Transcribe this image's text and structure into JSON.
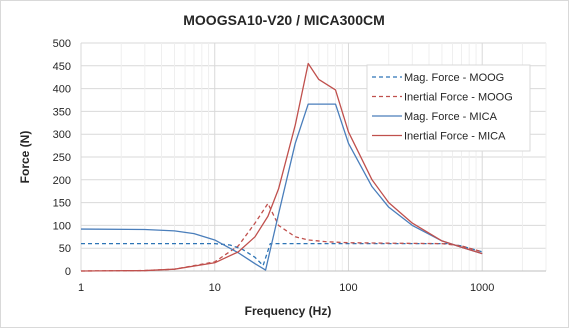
{
  "chart_data": {
    "type": "line",
    "title": "MOOGSA10-V20 / MICA300CM",
    "xlabel": "Frequency (Hz)",
    "ylabel": "Force (N)",
    "xscale": "log",
    "xlim": [
      1,
      3000
    ],
    "ylim": [
      0,
      500
    ],
    "xticks": [
      "1",
      "10",
      "100",
      "1000"
    ],
    "yticks": [
      "0",
      "50",
      "100",
      "150",
      "200",
      "250",
      "300",
      "350",
      "400",
      "450",
      "500"
    ],
    "grid": true,
    "legend_position": "top-right",
    "series": [
      {
        "name": "Mag. Force - MOOG",
        "color": "#2e75b6",
        "dash": "dashed",
        "x": [
          1,
          5,
          10,
          13,
          16,
          20,
          23,
          26,
          30,
          50,
          100,
          300,
          550,
          700,
          1000
        ],
        "y": [
          60,
          60,
          60,
          57,
          48,
          30,
          12,
          60,
          60,
          60,
          60,
          60,
          60,
          55,
          42
        ]
      },
      {
        "name": "Inertial Force - MOOG",
        "color": "#c0504d",
        "dash": "dashed",
        "x": [
          1,
          3,
          5,
          10,
          15,
          20,
          25,
          30,
          40,
          50,
          70,
          100,
          200,
          500,
          700,
          1000
        ],
        "y": [
          0,
          1,
          4,
          20,
          55,
          105,
          148,
          100,
          75,
          68,
          64,
          62,
          61,
          60,
          55,
          42
        ]
      },
      {
        "name": "Mag. Force - MICA",
        "color": "#4a7ebb",
        "dash": "solid",
        "x": [
          1,
          3,
          5,
          7,
          10,
          15,
          20,
          24,
          30,
          40,
          50,
          80,
          100,
          150,
          200,
          300,
          500,
          700,
          1000
        ],
        "y": [
          92,
          91,
          88,
          82,
          68,
          40,
          16,
          2,
          125,
          280,
          366,
          366,
          280,
          185,
          140,
          100,
          66,
          52,
          38
        ]
      },
      {
        "name": "Inertial Force - MICA",
        "color": "#c0504d",
        "dash": "solid",
        "x": [
          1,
          3,
          5,
          10,
          15,
          20,
          25,
          30,
          40,
          50,
          60,
          80,
          100,
          150,
          200,
          300,
          500,
          700,
          1000
        ],
        "y": [
          0,
          1,
          4,
          18,
          42,
          75,
          120,
          180,
          320,
          455,
          420,
          397,
          305,
          200,
          150,
          105,
          66,
          52,
          38
        ]
      }
    ]
  }
}
